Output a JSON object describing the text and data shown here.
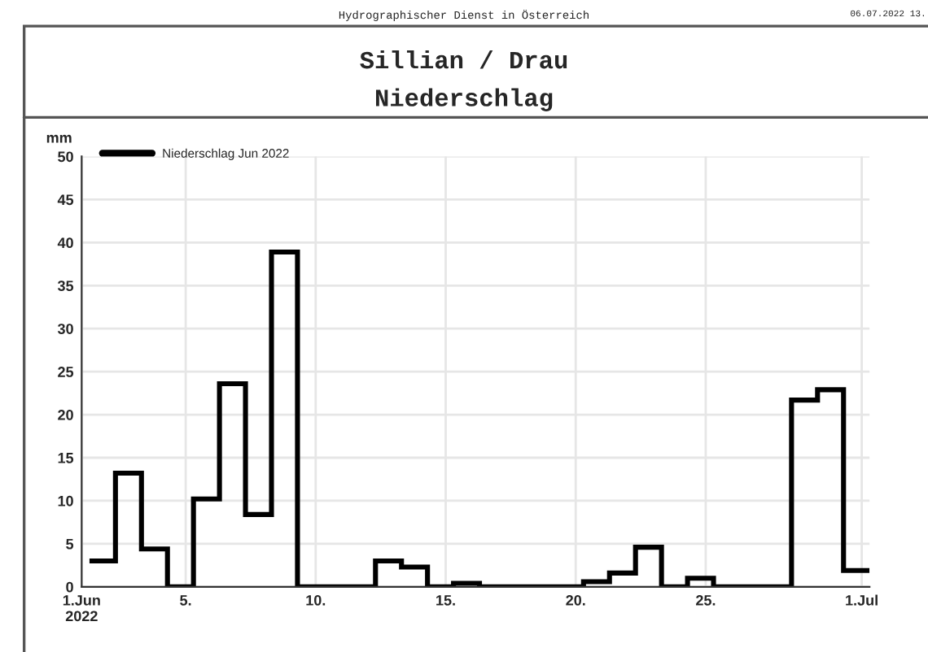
{
  "chart_data": {
    "type": "histogram",
    "title": "Sillian / Drau",
    "subtitle": "Niederschlag",
    "ylabel": "mm",
    "annotations": [
      "Hydrographischer Dienst in Österreich",
      "06.07.2022 13."
    ],
    "bins": [
      1.3,
      2.3,
      3.3,
      4.3,
      5.3,
      6.3,
      7.3,
      8.3,
      9.3,
      10.3,
      11.3,
      12.3,
      13.3,
      14.3,
      15.3,
      16.3,
      17.3,
      18.3,
      19.3,
      20.3,
      21.3,
      22.3,
      23.3,
      24.3,
      25.3,
      26.3,
      27.3,
      28.3,
      29.3,
      30.3,
      31.3
    ],
    "series": [
      {
        "name": "Niederschlag Jun 2022",
        "color": "#000000",
        "values": [
          3.0,
          13.2,
          4.4,
          0,
          10.2,
          23.6,
          8.4,
          38.9,
          0,
          0,
          0,
          3.0,
          2.3,
          0,
          0.4,
          0,
          0,
          0,
          0,
          0.6,
          1.6,
          4.6,
          0,
          1.0,
          0,
          0,
          0,
          21.7,
          22.9,
          1.9
        ]
      }
    ],
    "xlim": [
      1,
      31.3
    ],
    "xticks": [
      {
        "value": 1,
        "label": "1.Jun\n2022"
      },
      {
        "value": 5,
        "label": "5."
      },
      {
        "value": 10,
        "label": "10."
      },
      {
        "value": 15,
        "label": "15."
      },
      {
        "value": 20,
        "label": "20."
      },
      {
        "value": 25,
        "label": "25."
      },
      {
        "value": 31,
        "label": "1.Jul"
      }
    ],
    "ylim": [
      0,
      50
    ],
    "yticks": [
      0,
      5,
      10,
      15,
      20,
      25,
      30,
      35,
      40,
      45,
      50
    ],
    "grid": true,
    "legend": "top left"
  }
}
